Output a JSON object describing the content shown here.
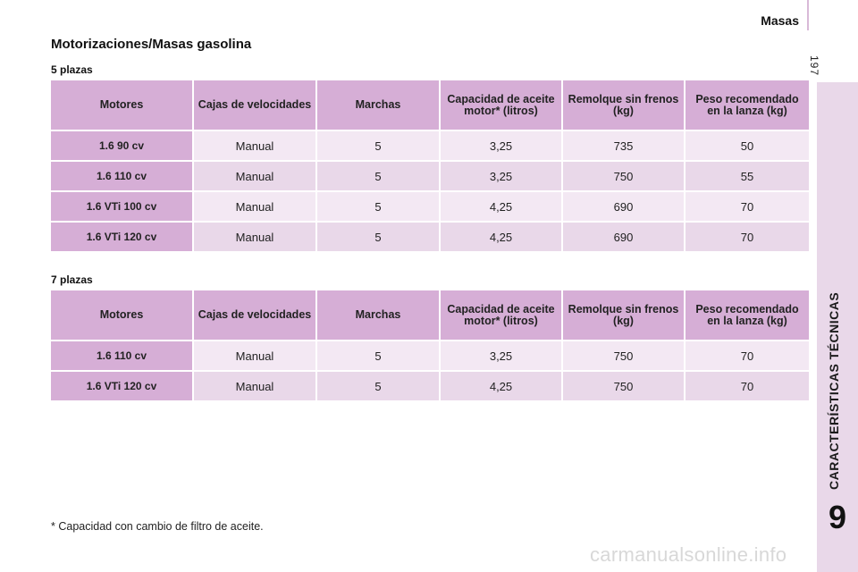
{
  "header": {
    "section": "Masas",
    "page_number": "197"
  },
  "sidebar": {
    "chapter_title": "CARACTERÍSTICAS TÉCNICAS",
    "chapter_number": "9"
  },
  "title": "Motorizaciones/Masas gasolina",
  "columns": [
    "Motores",
    "Cajas de velocidades",
    "Marchas",
    "Capacidad de aceite motor* (litros)",
    "Remolque sin frenos (kg)",
    "Peso recomendado en la lanza (kg)"
  ],
  "table5": {
    "label": "5 plazas",
    "rows": [
      [
        "1.6 90 cv",
        "Manual",
        "5",
        "3,25",
        "735",
        "50"
      ],
      [
        "1.6 110 cv",
        "Manual",
        "5",
        "3,25",
        "750",
        "55"
      ],
      [
        "1.6 VTi 100 cv",
        "Manual",
        "5",
        "4,25",
        "690",
        "70"
      ],
      [
        "1.6 VTi 120 cv",
        "Manual",
        "5",
        "4,25",
        "690",
        "70"
      ]
    ]
  },
  "table7": {
    "label": "7 plazas",
    "rows": [
      [
        "1.6 110 cv",
        "Manual",
        "5",
        "3,25",
        "750",
        "70"
      ],
      [
        "1.6 VTi 120 cv",
        "Manual",
        "5",
        "4,25",
        "750",
        "70"
      ]
    ]
  },
  "footnote": "* Capacidad con cambio de filtro de aceite.",
  "watermark": "carmanualsonline.info"
}
